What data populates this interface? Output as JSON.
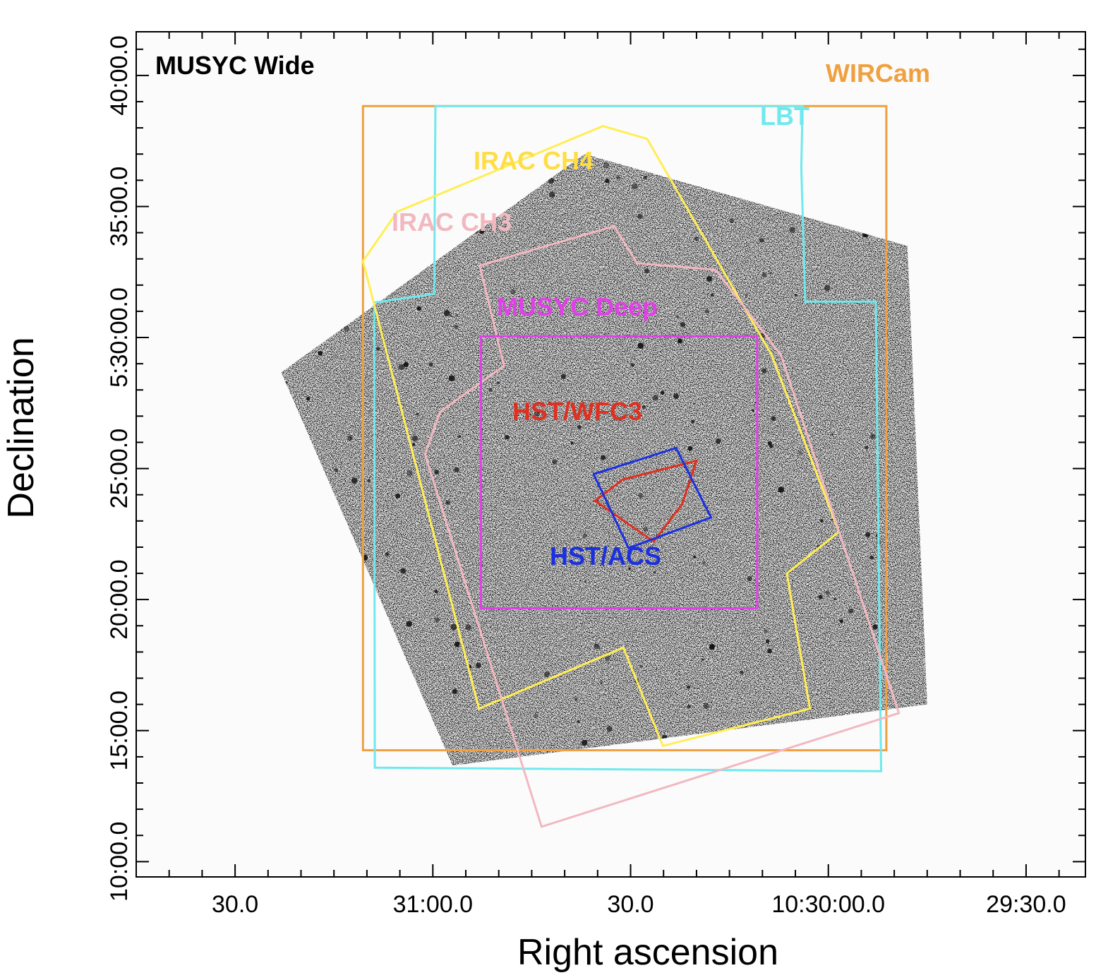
{
  "chart_data": {
    "type": "scatter",
    "title": "",
    "xlabel": "Right ascension",
    "ylabel": "Declination",
    "xlim": [
      "10:31:45.0",
      "10:29:21.0"
    ],
    "ylim": [
      "5:09:25.0",
      "5:41:40.0"
    ],
    "x_tick_labels": [
      {
        "label": "30.0",
        "ra": "10:31:30.0"
      },
      {
        "label": "31:00.0",
        "ra": "10:31:00.0"
      },
      {
        "label": "30.0",
        "ra": "10:30:30.0"
      },
      {
        "label": "10:30:00.0",
        "ra": "10:30:00.0"
      },
      {
        "label": "29:30.0",
        "ra": "10:29:30.0"
      }
    ],
    "y_tick_labels": [
      {
        "label": "10:00.0",
        "dec": "5:10:00.0"
      },
      {
        "label": "15:00.0",
        "dec": "5:15:00.0"
      },
      {
        "label": "20:00.0",
        "dec": "5:20:00.0"
      },
      {
        "label": "25:00.0",
        "dec": "5:25:00.0"
      },
      {
        "label": "5:30:00.0",
        "dec": "5:30:00.0"
      },
      {
        "label": "35:00.0",
        "dec": "5:35:00.0"
      },
      {
        "label": "40:00.0",
        "dec": "5:40:00.0"
      }
    ],
    "background_image": {
      "kind": "greyscale x-ray counts map",
      "corners": [
        {
          "ra": "10:31:23.0",
          "dec": "5:28:40.0"
        },
        {
          "ra": "10:30:37.0",
          "dec": "5:37:00.0"
        },
        {
          "ra": "10:29:48.0",
          "dec": "5:33:30.0"
        },
        {
          "ra": "10:29:45.0",
          "dec": "5:16:00.0"
        },
        {
          "ra": "10:30:57.0",
          "dec": "5:13:40.0"
        }
      ]
    },
    "series": [
      {
        "name": "MUSYC Wide",
        "label_color": "#000000",
        "points": []
      },
      {
        "name": "WIRCam",
        "color": "#f0a040",
        "points": [
          {
            "ra": "10:31:10.6",
            "dec": "5:38:50.0"
          },
          {
            "ra": "10:29:51.2",
            "dec": "5:38:50.0"
          },
          {
            "ra": "10:29:51.2",
            "dec": "5:14:15.0"
          },
          {
            "ra": "10:31:10.6",
            "dec": "5:14:15.0"
          }
        ]
      },
      {
        "name": "LBT",
        "color": "#6fe9ee",
        "points": [
          {
            "ra": "10:30:59.6",
            "dec": "5:38:50.0"
          },
          {
            "ra": "10:30:03.9",
            "dec": "5:38:50.0"
          },
          {
            "ra": "10:30:04.1",
            "dec": "5:36:30.0"
          },
          {
            "ra": "10:30:03.5",
            "dec": "5:31:22.0"
          },
          {
            "ra": "10:29:52.8",
            "dec": "5:31:22.0"
          },
          {
            "ra": "10:29:52.0",
            "dec": "5:13:27.0"
          },
          {
            "ra": "10:31:08.8",
            "dec": "5:13:35.0"
          },
          {
            "ra": "10:31:08.9",
            "dec": "5:31:20.0"
          },
          {
            "ra": "10:30:59.8",
            "dec": "5:31:40.0"
          }
        ]
      },
      {
        "name": "IRAC CH4",
        "color": "#ffee55",
        "points": [
          {
            "ra": "10:31:10.6",
            "dec": "5:32:55.0"
          },
          {
            "ra": "10:31:05.4",
            "dec": "5:34:48.0"
          },
          {
            "ra": "10:30:34.2",
            "dec": "5:38:04.0"
          },
          {
            "ra": "10:30:27.5",
            "dec": "5:37:35.0"
          },
          {
            "ra": "10:30:08.6",
            "dec": "5:29:20.0"
          },
          {
            "ra": "10:29:58.4",
            "dec": "5:22:35.0"
          },
          {
            "ra": "10:30:06.3",
            "dec": "5:21:00.0"
          },
          {
            "ra": "10:30:02.8",
            "dec": "5:15:50.0"
          },
          {
            "ra": "10:30:25.1",
            "dec": "5:14:25.0"
          },
          {
            "ra": "10:30:31.1",
            "dec": "5:18:10.0"
          },
          {
            "ra": "10:30:53.0",
            "dec": "5:15:50.0"
          }
        ]
      },
      {
        "name": "IRAC CH3",
        "color": "#f2b8c0",
        "points": [
          {
            "ra": "10:31:01.2",
            "dec": "5:25:33.0"
          },
          {
            "ra": "10:30:58.9",
            "dec": "5:27:10.0"
          },
          {
            "ra": "10:30:49.2",
            "dec": "5:28:55.0"
          },
          {
            "ra": "10:30:52.9",
            "dec": "5:32:45.0"
          },
          {
            "ra": "10:30:32.5",
            "dec": "5:34:15.0"
          },
          {
            "ra": "10:30:29.0",
            "dec": "5:32:50.0"
          },
          {
            "ra": "10:30:17.1",
            "dec": "5:32:35.0"
          },
          {
            "ra": "10:30:07.2",
            "dec": "5:29:20.0"
          },
          {
            "ra": "10:29:49.3",
            "dec": "5:15:40.0"
          },
          {
            "ra": "10:30:43.5",
            "dec": "5:11:20.0"
          }
        ]
      },
      {
        "name": "MUSYC Deep",
        "color": "#e040e8",
        "points": [
          {
            "ra": "10:30:52.7",
            "dec": "5:30:03.0"
          },
          {
            "ra": "10:30:10.8",
            "dec": "5:30:03.0"
          },
          {
            "ra": "10:30:10.8",
            "dec": "5:19:40.0"
          },
          {
            "ra": "10:30:52.7",
            "dec": "5:19:40.0"
          }
        ]
      },
      {
        "name": "HST/WFC3",
        "color": "#e03020",
        "points": [
          {
            "ra": "10:30:31.2",
            "dec": "5:24:35.0"
          },
          {
            "ra": "10:30:20.0",
            "dec": "5:25:18.0"
          },
          {
            "ra": "10:30:22.2",
            "dec": "5:23:38.0"
          },
          {
            "ra": "10:30:26.5",
            "dec": "5:22:13.0"
          },
          {
            "ra": "10:30:35.4",
            "dec": "5:23:46.0"
          }
        ]
      },
      {
        "name": "HST/ACS",
        "color": "#1a30e0",
        "points": [
          {
            "ra": "10:30:35.6",
            "dec": "5:24:47.0"
          },
          {
            "ra": "10:30:23.1",
            "dec": "5:25:47.0"
          },
          {
            "ra": "10:30:17.8",
            "dec": "5:23:08.0"
          },
          {
            "ra": "10:30:30.3",
            "dec": "5:21:58.0"
          }
        ]
      }
    ],
    "labels": [
      {
        "text": "MUSYC Wide",
        "color": "#000000"
      },
      {
        "text": "WIRCam",
        "color": "#f0a040"
      },
      {
        "text": "LBT",
        "color": "#6fe9ee"
      },
      {
        "text": "IRAC CH4",
        "color": "#ffdd44"
      },
      {
        "text": "IRAC CH3",
        "color": "#f2b8c0"
      },
      {
        "text": "MUSYC Deep",
        "color": "#e040e8"
      },
      {
        "text": "HST/WFC3",
        "color": "#e03020"
      },
      {
        "text": "HST/ACS",
        "color": "#1a30e0"
      }
    ]
  }
}
